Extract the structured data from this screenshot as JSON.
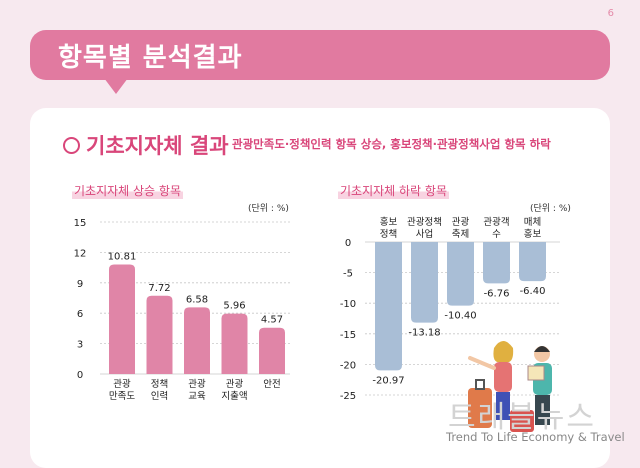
{
  "page_number": "6",
  "banner": {
    "title": "항목별 분석결과"
  },
  "section": {
    "title": "기초지자체 결과",
    "subtitle": "관광만족도·정책인력 항목 상승, 홍보정책·관광정책사업 항목 하락"
  },
  "watermark": {
    "logo_text": "트래블뉴스",
    "tagline": "Trend To Life Economy & Travel"
  },
  "colors": {
    "accent": "#d9467a",
    "bar_up": "#e085a7",
    "bar_down": "#a9bed6",
    "banner": "#e17aa0"
  },
  "chart_data": [
    {
      "type": "bar",
      "title": "기초지자체 상승 항목",
      "unit": "(단위 : %)",
      "categories": [
        [
          "관광",
          "만족도"
        ],
        [
          "정책",
          "인력"
        ],
        [
          "관광",
          "교육"
        ],
        [
          "관광",
          "지출액"
        ],
        [
          "안전"
        ]
      ],
      "values": [
        10.81,
        7.72,
        6.58,
        5.96,
        4.57
      ],
      "value_labels": [
        "10.81",
        "7.72",
        "6.58",
        "5.96",
        "4.57"
      ],
      "ylim": [
        0,
        15
      ],
      "yticks": [
        "15",
        "12",
        "9",
        "6",
        "3",
        "0"
      ],
      "grid": true
    },
    {
      "type": "bar",
      "title": "기초지자체 하락 항목",
      "unit": "(단위 : %)",
      "categories": [
        [
          "홍보",
          "정책"
        ],
        [
          "관광정책",
          "사업"
        ],
        [
          "관광",
          "축제"
        ],
        [
          "관광객",
          "수"
        ],
        [
          "매체",
          "홍보"
        ]
      ],
      "values": [
        -20.97,
        -13.18,
        -10.4,
        -6.76,
        -6.4
      ],
      "value_labels": [
        "-20.97",
        "-13.18",
        "-10.40",
        "-6.76",
        "-6.40"
      ],
      "ylim": [
        -25,
        0
      ],
      "yticks": [
        "0",
        "-5",
        "-10",
        "-15",
        "-20",
        "-25"
      ],
      "grid": true
    }
  ]
}
